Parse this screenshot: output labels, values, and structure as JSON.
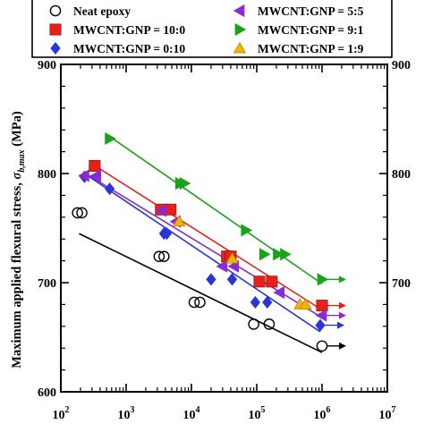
{
  "chart_data": {
    "type": "scatter",
    "title": "",
    "xlabel": "",
    "ylabel": {
      "prefix": "Maximum applied flexural stress, ",
      "symbol": "σ",
      "subscript": "b,max",
      "unit": " (MPa)"
    },
    "x_scale": "log",
    "xlim": [
      100,
      10000000
    ],
    "ylim": [
      600,
      900
    ],
    "x_ticks": [
      {
        "value": 100,
        "base": "10",
        "exp": "2"
      },
      {
        "value": 1000,
        "base": "10",
        "exp": "3"
      },
      {
        "value": 10000,
        "base": "10",
        "exp": "4"
      },
      {
        "value": 100000,
        "base": "10",
        "exp": "5"
      },
      {
        "value": 1000000,
        "base": "10",
        "exp": "6"
      },
      {
        "value": 10000000,
        "base": "10",
        "exp": "7"
      }
    ],
    "y_ticks": [
      600,
      700,
      800,
      900
    ],
    "right_axis_ticks": [
      700,
      800,
      900
    ],
    "grid": false,
    "legend_position": "top",
    "series": [
      {
        "name": "Neat epoxy",
        "color": "#000000",
        "marker": "circle-open",
        "points": [
          [
            180,
            764
          ],
          [
            210,
            764
          ],
          [
            3200,
            724
          ],
          [
            3800,
            724
          ],
          [
            11000,
            682
          ],
          [
            13500,
            682
          ],
          [
            90000,
            662
          ],
          [
            155000,
            662
          ],
          [
            1000000,
            642
          ]
        ],
        "runout": [
          1000000,
          642
        ],
        "fit": [
          [
            190,
            745
          ],
          [
            1000000,
            636
          ]
        ]
      },
      {
        "name": "MWCNT:GNP = 10:0",
        "color": "#e8201a",
        "marker": "square",
        "points": [
          [
            330,
            807
          ],
          [
            3400,
            767
          ],
          [
            4800,
            767
          ],
          [
            35000,
            724
          ],
          [
            40000,
            724
          ],
          [
            110000,
            701
          ],
          [
            170000,
            701
          ],
          [
            1000000,
            679
          ]
        ],
        "runout": [
          1000000,
          679
        ],
        "fit": [
          [
            280,
            810
          ],
          [
            1000000,
            675
          ]
        ]
      },
      {
        "name": "MWCNT:GNP = 0:10",
        "color": "#2a35d6",
        "marker": "diamond",
        "points": [
          [
            230,
            797
          ],
          [
            560,
            786
          ],
          [
            3800,
            745
          ],
          [
            4200,
            745
          ],
          [
            20000,
            703
          ],
          [
            42000,
            703
          ],
          [
            95000,
            682
          ],
          [
            145000,
            682
          ],
          [
            940000,
            661
          ]
        ],
        "runout": [
          940000,
          661
        ],
        "fit": [
          [
            230,
            800
          ],
          [
            940000,
            655
          ]
        ]
      },
      {
        "name": "MWCNT:GNP = 5:5",
        "color": "#8a2ad0",
        "marker": "triangle-left",
        "points": [
          [
            230,
            798
          ],
          [
            350,
            798
          ],
          [
            3500,
            766
          ],
          [
            5800,
            756
          ],
          [
            30000,
            715
          ],
          [
            45000,
            715
          ],
          [
            225000,
            691
          ],
          [
            1000000,
            670
          ]
        ],
        "runout": [
          1000000,
          670
        ],
        "fit": [
          [
            240,
            800
          ],
          [
            1000000,
            668
          ]
        ]
      },
      {
        "name": "MWCNT:GNP = 9:1",
        "color": "#19a318",
        "marker": "triangle-right",
        "points": [
          [
            560,
            832
          ],
          [
            6700,
            791
          ],
          [
            7800,
            791
          ],
          [
            68000,
            748
          ],
          [
            130000,
            726
          ],
          [
            210000,
            726
          ],
          [
            270000,
            726
          ],
          [
            1000000,
            703
          ]
        ],
        "runout": [
          1000000,
          703
        ],
        "fit": [
          [
            500,
            836
          ],
          [
            1000000,
            699
          ]
        ]
      },
      {
        "name": "MWCNT:GNP = 1:9",
        "color": "#f0b400",
        "marker": "triangle-up",
        "points": [
          [
            6500,
            756
          ],
          [
            42000,
            722
          ],
          [
            460000,
            680
          ],
          [
            560000,
            680
          ]
        ],
        "runout": null,
        "fit": null
      }
    ]
  }
}
